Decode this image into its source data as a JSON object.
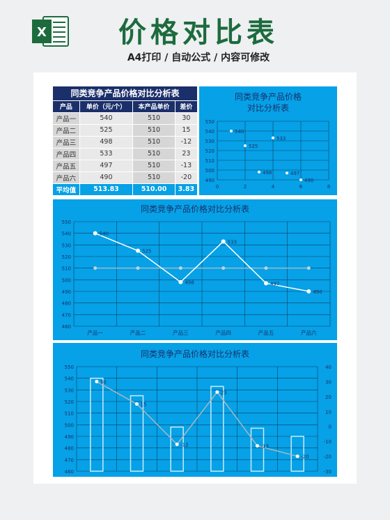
{
  "header": {
    "title": "价格对比表",
    "subtitle": "A4打印 / 自动公式 / 内容可修改",
    "logo_letter": "X"
  },
  "table": {
    "title": "同类竞争产品价格对比分析表",
    "columns": [
      "产品",
      "单价（元/个）",
      "本产品单价",
      "差价"
    ],
    "rows": [
      [
        "产品一",
        "540",
        "510",
        "30"
      ],
      [
        "产品二",
        "525",
        "510",
        "15"
      ],
      [
        "产品三",
        "498",
        "510",
        "-12"
      ],
      [
        "产品四",
        "533",
        "510",
        "23"
      ],
      [
        "产品五",
        "497",
        "510",
        "-13"
      ],
      [
        "产品六",
        "490",
        "510",
        "-20"
      ]
    ],
    "footer": [
      "平均值",
      "513.83",
      "510.00",
      "3.83"
    ]
  },
  "chart_data": [
    {
      "type": "scatter",
      "title": "同类竞争产品价格\n对比分析表",
      "points": [
        [
          1,
          540
        ],
        [
          2,
          525
        ],
        [
          3,
          498
        ],
        [
          4,
          533
        ],
        [
          5,
          497
        ],
        [
          6,
          490
        ]
      ],
      "xlim": [
        0,
        8
      ],
      "xticks": [
        "0",
        "2",
        "4",
        "6",
        "8"
      ],
      "ylim": [
        490,
        550
      ],
      "yticks": [
        "490",
        "500",
        "510",
        "520",
        "530",
        "540",
        "550"
      ],
      "grid": true
    },
    {
      "type": "line",
      "title": "同类竞争产品价格对比分析表",
      "categories": [
        "产品一",
        "产品二",
        "产品三",
        "产品四",
        "产品五",
        "产品六"
      ],
      "series": [
        {
          "values": [
            540,
            525,
            498,
            533,
            497,
            490
          ],
          "labels": [
            "540",
            "525",
            "498",
            "533",
            "497",
            "490"
          ]
        },
        {
          "values": [
            510,
            510,
            510,
            510,
            510,
            510
          ]
        }
      ],
      "ylim": [
        460,
        550
      ],
      "yticks": [
        "460",
        "470",
        "480",
        "490",
        "500",
        "510",
        "520",
        "530",
        "540",
        "550"
      ],
      "grid": true
    },
    {
      "type": "bar",
      "title": "同类竞争产品价格对比分析表",
      "categories": [
        "产品一",
        "产品二",
        "产品三",
        "产品四",
        "产品五",
        "产品六"
      ],
      "bars": [
        540,
        525,
        498,
        533,
        497,
        490
      ],
      "line": [
        30,
        15,
        -12,
        23,
        -13,
        -20
      ],
      "line_labels": [
        "30",
        "15",
        "-12",
        "23",
        "-13",
        "-20"
      ],
      "ylim": [
        460,
        550
      ],
      "yticks": [
        "460",
        "470",
        "480",
        "490",
        "500",
        "510",
        "520",
        "530",
        "540",
        "550"
      ],
      "y2lim": [
        -30,
        40
      ],
      "y2ticks": [
        "-30",
        "-20",
        "-10",
        "0",
        "10",
        "20",
        "30",
        "40"
      ],
      "grid": true
    }
  ]
}
